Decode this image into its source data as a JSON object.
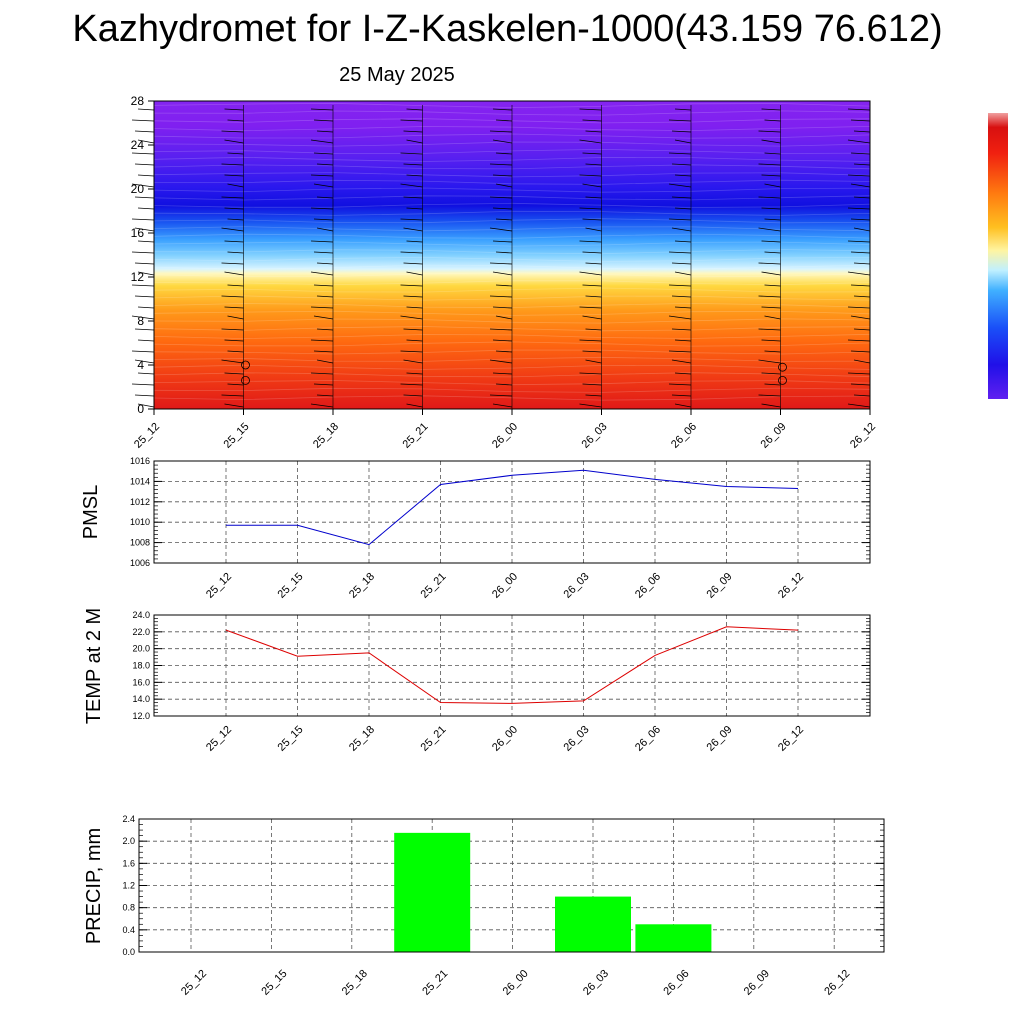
{
  "header": {
    "title": "Kazhydromet for I-Z-Kaskelen-1000(43.159 76.612)",
    "date": "25 May 2025"
  },
  "time_labels": [
    "25_12",
    "25_15",
    "25_18",
    "25_21",
    "26_00",
    "26_03",
    "26_06",
    "26_09",
    "26_12"
  ],
  "colors": {
    "pmsl_line": "#0000cc",
    "temp_line": "#dd0000",
    "precip_bar": "#00ff00",
    "grid": "#555555"
  },
  "chart_data": [
    {
      "type": "heatmap",
      "title": "",
      "xlabel": "",
      "ylabel": "",
      "x": [
        "25_12",
        "25_15",
        "25_18",
        "25_21",
        "26_00",
        "26_03",
        "26_06",
        "26_09",
        "26_12"
      ],
      "y_ticks": [
        0,
        4,
        8,
        12,
        16,
        20,
        24,
        28
      ],
      "ylim": [
        0,
        28
      ],
      "colorscale": [
        "#dd1a1a",
        "#ff5a10",
        "#ff9a1a",
        "#ffd040",
        "#fff5a0",
        "#b8eeff",
        "#40b0ff",
        "#2060ff",
        "#1020e8",
        "#3020f0",
        "#8020f0"
      ],
      "wind_barbs": true
    },
    {
      "type": "line",
      "ylabel": "PMSL",
      "x": [
        "25_12",
        "25_15",
        "25_18",
        "25_21",
        "26_00",
        "26_03",
        "26_06",
        "26_09",
        "26_12"
      ],
      "y_ticks": [
        "1006",
        "1008",
        "1010",
        "1012",
        "1014",
        "1016"
      ],
      "ylim": [
        1006,
        1016
      ],
      "grid": true,
      "series": [
        {
          "values": [
            1009.7,
            1009.7,
            1007.8,
            1013.7,
            1014.6,
            1015.1,
            1014.2,
            1013.5,
            1013.3
          ]
        }
      ]
    },
    {
      "type": "line",
      "ylabel": "TEMP at 2 M",
      "x": [
        "25_12",
        "25_15",
        "25_18",
        "25_21",
        "26_00",
        "26_03",
        "26_06",
        "26_09",
        "26_12"
      ],
      "y_ticks": [
        "12.0",
        "14.0",
        "16.0",
        "18.0",
        "20.0",
        "22.0",
        "24.0"
      ],
      "ylim": [
        12,
        24
      ],
      "grid": true,
      "series": [
        {
          "values": [
            22.2,
            19.1,
            19.5,
            13.6,
            13.5,
            13.8,
            19.2,
            22.6,
            22.2
          ]
        }
      ]
    },
    {
      "type": "bar",
      "ylabel": "PRECIP, mm",
      "categories": [
        "25_12",
        "25_15",
        "25_18",
        "25_21",
        "26_00",
        "26_03",
        "26_06",
        "26_09",
        "26_12"
      ],
      "y_ticks": [
        "0.0",
        "0.4",
        "0.8",
        "1.2",
        "1.6",
        "2.0",
        "2.4"
      ],
      "ylim": [
        0,
        2.4
      ],
      "grid": true,
      "values": [
        0,
        0,
        0,
        2.15,
        0,
        1.0,
        0.5,
        0,
        0
      ]
    }
  ]
}
